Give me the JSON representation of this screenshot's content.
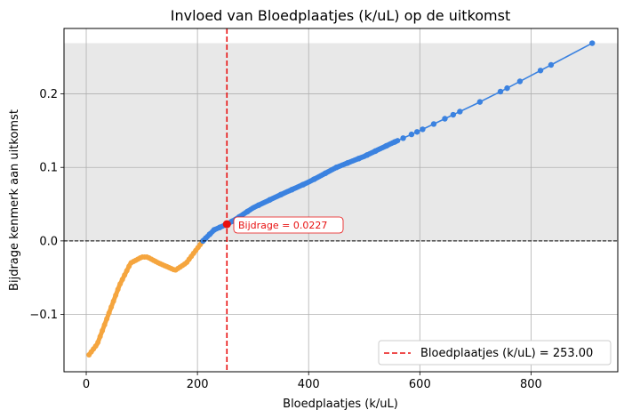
{
  "chart_data": {
    "type": "line",
    "title": "Invloed van Bloedplaatjes (k/uL) op de uitkomst",
    "xlabel": "Bloedplaatjes (k/uL)",
    "ylabel": "Bijdrage kenmerk aan uitkomst",
    "xlim": [
      -40,
      956
    ],
    "ylim": [
      -0.178,
      0.289
    ],
    "xticks": [
      0,
      200,
      400,
      600,
      800
    ],
    "yticks": [
      -0.1,
      0.0,
      0.1,
      0.2
    ],
    "xtick_labels": [
      "0",
      "200",
      "400",
      "600",
      "800"
    ],
    "ytick_labels": [
      "−0.1",
      "0.0",
      "0.1",
      "0.2"
    ],
    "grid": true,
    "shaded_region": {
      "y_from": 0.0,
      "y_to": 0.269,
      "color": "#e8e8e8"
    },
    "zero_line": {
      "y": 0.0,
      "style": "dashed",
      "color": "#000000"
    },
    "colors": {
      "positive": "#3b82e0",
      "negative": "#f5a53e",
      "marker": "#e81010"
    },
    "series": [
      {
        "x": [
          5,
          20,
          40,
          60,
          80,
          100,
          110,
          130,
          160,
          180,
          200,
          210
        ],
        "y": [
          -0.155,
          -0.14,
          -0.1,
          -0.06,
          -0.03,
          -0.022,
          -0.022,
          -0.03,
          -0.04,
          -0.03,
          -0.01,
          0.0
        ]
      },
      {
        "x": [
          210,
          230,
          253,
          270,
          300,
          350,
          400,
          450,
          500,
          550,
          600,
          650,
          700,
          750,
          800,
          850,
          910
        ],
        "y": [
          0.0,
          0.015,
          0.0227,
          0.03,
          0.045,
          0.063,
          0.08,
          0.1,
          0.115,
          0.133,
          0.15,
          0.168,
          0.186,
          0.205,
          0.225,
          0.245,
          0.269
        ]
      }
    ],
    "scatter_points": {
      "positive": [
        210,
        215,
        222,
        230,
        240,
        253,
        262,
        275,
        290,
        310,
        330,
        350,
        370,
        390,
        410,
        430,
        450,
        470,
        490,
        505,
        520,
        540,
        555,
        570,
        585,
        595,
        605,
        625,
        645,
        660,
        672,
        708,
        745,
        757,
        780,
        817,
        836,
        910
      ],
      "negative_range": [
        5,
        210
      ]
    },
    "vline": {
      "x": 253,
      "label": "Bloedplaatjes (k/uL) = 253.00",
      "color": "#e81010"
    },
    "highlight_point": {
      "x": 253,
      "y": 0.0227,
      "annotation": "Bijdrage = 0.0227"
    },
    "legend": {
      "position": "bottom-right",
      "entries": [
        "Bloedplaatjes (k/uL) = 253.00"
      ]
    }
  }
}
